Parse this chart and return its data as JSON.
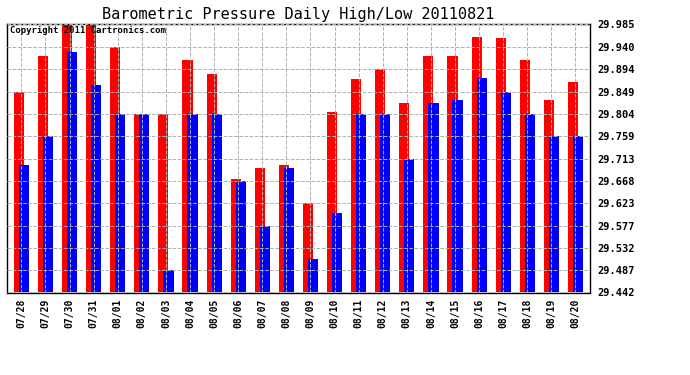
{
  "title": "Barometric Pressure Daily High/Low 20110821",
  "copyright": "Copyright 2011 Cartronics.com",
  "categories": [
    "07/28",
    "07/29",
    "07/30",
    "07/31",
    "08/01",
    "08/02",
    "08/03",
    "08/04",
    "08/05",
    "08/06",
    "08/07",
    "08/08",
    "08/09",
    "08/10",
    "08/11",
    "08/12",
    "08/13",
    "08/14",
    "08/15",
    "08/16",
    "08/17",
    "08/18",
    "08/19",
    "08/20"
  ],
  "highs": [
    29.849,
    29.921,
    29.985,
    29.985,
    29.94,
    29.804,
    29.804,
    29.912,
    29.885,
    29.672,
    29.695,
    29.7,
    29.623,
    29.808,
    29.875,
    29.895,
    29.826,
    29.921,
    29.921,
    29.96,
    29.958,
    29.912,
    29.831,
    29.868
  ],
  "lows": [
    29.7,
    29.759,
    29.93,
    29.862,
    29.804,
    29.804,
    29.487,
    29.804,
    29.804,
    29.668,
    29.577,
    29.695,
    29.51,
    29.603,
    29.804,
    29.804,
    29.713,
    29.826,
    29.831,
    29.876,
    29.849,
    29.804,
    29.759,
    29.759
  ],
  "bar_color_high": "#ff0000",
  "bar_color_low": "#0000ff",
  "bg_color": "#ffffff",
  "grid_color": "#b0b0b0",
  "yticks": [
    29.442,
    29.487,
    29.532,
    29.577,
    29.623,
    29.668,
    29.713,
    29.759,
    29.804,
    29.849,
    29.894,
    29.94,
    29.985
  ],
  "ymin": 29.442,
  "ymax": 29.985,
  "title_fontsize": 11,
  "copyright_fontsize": 6.5
}
